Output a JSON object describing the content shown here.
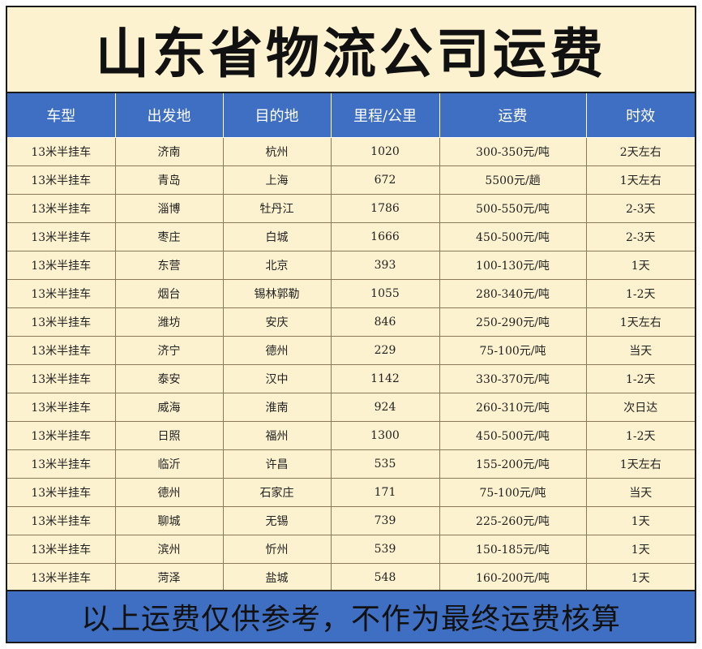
{
  "title": "山东省物流公司运费",
  "columns": [
    "车型",
    "出发地",
    "目的地",
    "里程/公里",
    "运费",
    "时效"
  ],
  "rows": [
    [
      "13米半挂车",
      "济南",
      "杭州",
      "1020",
      "300-350元/吨",
      "2天左右"
    ],
    [
      "13米半挂车",
      "青岛",
      "上海",
      "672",
      "5500元/趟",
      "1天左右"
    ],
    [
      "13米半挂车",
      "淄博",
      "牡丹江",
      "1786",
      "500-550元/吨",
      "2-3天"
    ],
    [
      "13米半挂车",
      "枣庄",
      "白城",
      "1666",
      "450-500元/吨",
      "2-3天"
    ],
    [
      "13米半挂车",
      "东营",
      "北京",
      "393",
      "100-130元/吨",
      "1天"
    ],
    [
      "13米半挂车",
      "烟台",
      "锡林郭勒",
      "1055",
      "280-340元/吨",
      "1-2天"
    ],
    [
      "13米半挂车",
      "潍坊",
      "安庆",
      "846",
      "250-290元/吨",
      "1天左右"
    ],
    [
      "13米半挂车",
      "济宁",
      "德州",
      "229",
      "75-100元/吨",
      "当天"
    ],
    [
      "13米半挂车",
      "泰安",
      "汉中",
      "1142",
      "330-370元/吨",
      "1-2天"
    ],
    [
      "13米半挂车",
      "威海",
      "淮南",
      "924",
      "260-310元/吨",
      "次日达"
    ],
    [
      "13米半挂车",
      "日照",
      "福州",
      "1300",
      "450-500元/吨",
      "1-2天"
    ],
    [
      "13米半挂车",
      "临沂",
      "许昌",
      "535",
      "155-200元/吨",
      "1天左右"
    ],
    [
      "13米半挂车",
      "德州",
      "石家庄",
      "171",
      "75-100元/吨",
      "当天"
    ],
    [
      "13米半挂车",
      "聊城",
      "无锡",
      "739",
      "225-260元/吨",
      "1天"
    ],
    [
      "13米半挂车",
      "滨州",
      "忻州",
      "539",
      "150-185元/吨",
      "1天"
    ],
    [
      "13米半挂车",
      "菏泽",
      "盐城",
      "548",
      "160-200元/吨",
      "1天"
    ]
  ],
  "footer": "以上运费仅供参考，不作为最终运费核算",
  "colors": {
    "background": "#fdf2cf",
    "header": "#3f6fc2",
    "footer": "#3f6fc2"
  }
}
